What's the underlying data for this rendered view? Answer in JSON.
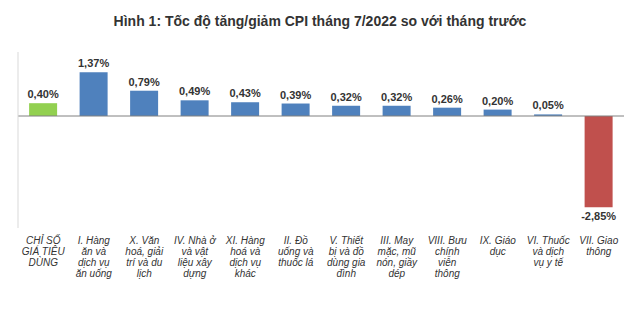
{
  "chart_data": {
    "type": "bar",
    "title": "Hình 1: Tốc độ tăng/giảm CPI tháng 7/2022 so với tháng trước",
    "categories": [
      "CHỈ SỐ GIÁ TIÊU DÙNG",
      "I. Hàng ăn và dịch vụ ăn uống",
      "X. Văn hoá, giải trí và du lịch",
      "IV. Nhà ở và vật liệu xây dựng",
      "XI. Hàng hoá và dịch vụ khác",
      "II. Đồ uống và thuốc lá",
      "V. Thiết bị và đồ dùng gia đình",
      "III. May mặc, mũ nón, giầy dép",
      "VIII. Bưu chính viễn thông",
      "IX. Giáo dục",
      "VI. Thuốc và dịch vụ y tế",
      "VII. Giao thông"
    ],
    "values": [
      0.4,
      1.37,
      0.79,
      0.49,
      0.43,
      0.39,
      0.32,
      0.32,
      0.26,
      0.2,
      0.05,
      -2.85
    ],
    "value_labels": [
      "0,40%",
      "1,37%",
      "0,79%",
      "0,49%",
      "0,43%",
      "0,39%",
      "0,32%",
      "0,32%",
      "0,26%",
      "0,20%",
      "0,05%",
      "-2,85%"
    ],
    "colors": [
      "#92d050",
      "#4f81bd",
      "#4f81bd",
      "#4f81bd",
      "#4f81bd",
      "#4f81bd",
      "#4f81bd",
      "#4f81bd",
      "#4f81bd",
      "#4f81bd",
      "#4f81bd",
      "#c0504d"
    ],
    "ylim": [
      -3.5,
      2
    ],
    "data_labels": true,
    "tick_labels": "x",
    "grid": false
  }
}
